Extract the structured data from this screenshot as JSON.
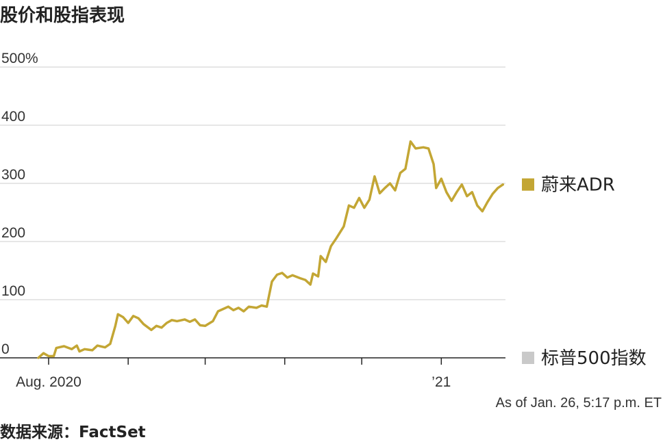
{
  "title": "股价和股指表现",
  "source": "数据来源：FactSet",
  "as_of": "As of Jan. 26, 5:17 p.m. ET",
  "colors": {
    "nio": "#C3A634",
    "sp500": "#C9C9C9",
    "grid": "#DDDDDD",
    "axis": "#222222"
  },
  "chart_data": {
    "type": "line",
    "title": "股价和股指表现",
    "xlabel": "",
    "ylabel": "",
    "ylim": [
      0,
      500
    ],
    "yticks": [
      0,
      100,
      200,
      300,
      400,
      500
    ],
    "ytick_labels": [
      "0",
      "100",
      "200",
      "300",
      "400",
      "500%"
    ],
    "x_range": [
      "2020-07-28",
      "2021-01-26"
    ],
    "xtick_labels": [
      {
        "date": "2020-08-01",
        "label": "Aug. 2020"
      },
      {
        "date": "2021-01-01",
        "label": "’21"
      }
    ],
    "xtick_marks": [
      "2020-08-01",
      "2020-09-01",
      "2020-10-01",
      "2020-11-01",
      "2020-12-01",
      "2021-01-01"
    ],
    "grid": true,
    "legend": "right",
    "series": [
      {
        "name": "蔚来ADR",
        "color": "#C3A634",
        "points": [
          [
            "2020-07-28",
            0
          ],
          [
            "2020-07-30",
            8
          ],
          [
            "2020-08-01",
            3
          ],
          [
            "2020-08-03",
            3
          ],
          [
            "2020-08-04",
            17
          ],
          [
            "2020-08-07",
            20
          ],
          [
            "2020-08-10",
            15
          ],
          [
            "2020-08-12",
            21
          ],
          [
            "2020-08-13",
            11
          ],
          [
            "2020-08-15",
            15
          ],
          [
            "2020-08-18",
            13
          ],
          [
            "2020-08-20",
            21
          ],
          [
            "2020-08-23",
            18
          ],
          [
            "2020-08-25",
            24
          ],
          [
            "2020-08-27",
            55
          ],
          [
            "2020-08-28",
            75
          ],
          [
            "2020-08-30",
            70
          ],
          [
            "2020-09-01",
            60
          ],
          [
            "2020-09-03",
            72
          ],
          [
            "2020-09-05",
            68
          ],
          [
            "2020-09-07",
            58
          ],
          [
            "2020-09-10",
            48
          ],
          [
            "2020-09-12",
            55
          ],
          [
            "2020-09-14",
            52
          ],
          [
            "2020-09-16",
            60
          ],
          [
            "2020-09-18",
            65
          ],
          [
            "2020-09-20",
            63
          ],
          [
            "2020-09-23",
            66
          ],
          [
            "2020-09-25",
            62
          ],
          [
            "2020-09-27",
            66
          ],
          [
            "2020-09-29",
            56
          ],
          [
            "2020-10-01",
            55
          ],
          [
            "2020-10-04",
            63
          ],
          [
            "2020-10-06",
            80
          ],
          [
            "2020-10-08",
            84
          ],
          [
            "2020-10-10",
            88
          ],
          [
            "2020-10-12",
            82
          ],
          [
            "2020-10-14",
            86
          ],
          [
            "2020-10-16",
            80
          ],
          [
            "2020-10-18",
            88
          ],
          [
            "2020-10-21",
            86
          ],
          [
            "2020-10-23",
            90
          ],
          [
            "2020-10-25",
            88
          ],
          [
            "2020-10-27",
            131
          ],
          [
            "2020-10-29",
            143
          ],
          [
            "2020-10-31",
            146
          ],
          [
            "2020-11-02",
            138
          ],
          [
            "2020-11-04",
            142
          ],
          [
            "2020-11-07",
            137
          ],
          [
            "2020-11-09",
            134
          ],
          [
            "2020-11-11",
            126
          ],
          [
            "2020-11-12",
            145
          ],
          [
            "2020-11-14",
            140
          ],
          [
            "2020-11-15",
            175
          ],
          [
            "2020-11-17",
            165
          ],
          [
            "2020-11-19",
            192
          ],
          [
            "2020-11-21",
            205
          ],
          [
            "2020-11-24",
            226
          ],
          [
            "2020-11-26",
            262
          ],
          [
            "2020-11-28",
            258
          ],
          [
            "2020-11-30",
            275
          ],
          [
            "2020-12-02",
            258
          ],
          [
            "2020-12-04",
            272
          ],
          [
            "2020-12-06",
            312
          ],
          [
            "2020-12-08",
            283
          ],
          [
            "2020-12-10",
            292
          ],
          [
            "2020-12-12",
            300
          ],
          [
            "2020-12-14",
            288
          ],
          [
            "2020-12-16",
            318
          ],
          [
            "2020-12-18",
            325
          ],
          [
            "2020-12-20",
            372
          ],
          [
            "2020-12-22",
            360
          ],
          [
            "2020-12-25",
            362
          ],
          [
            "2020-12-27",
            360
          ],
          [
            "2020-12-29",
            333
          ],
          [
            "2020-12-30",
            292
          ],
          [
            "2021-01-01",
            308
          ],
          [
            "2021-01-03",
            285
          ],
          [
            "2021-01-05",
            270
          ],
          [
            "2021-01-07",
            285
          ],
          [
            "2021-01-09",
            298
          ],
          [
            "2021-01-11",
            278
          ],
          [
            "2021-01-13",
            285
          ],
          [
            "2021-01-15",
            262
          ],
          [
            "2021-01-17",
            252
          ],
          [
            "2021-01-19",
            268
          ],
          [
            "2021-01-21",
            282
          ],
          [
            "2021-01-23",
            292
          ],
          [
            "2021-01-25",
            298
          ]
        ]
      },
      {
        "name": "标普500指数",
        "color": "#C9C9C9",
        "points": []
      }
    ]
  }
}
